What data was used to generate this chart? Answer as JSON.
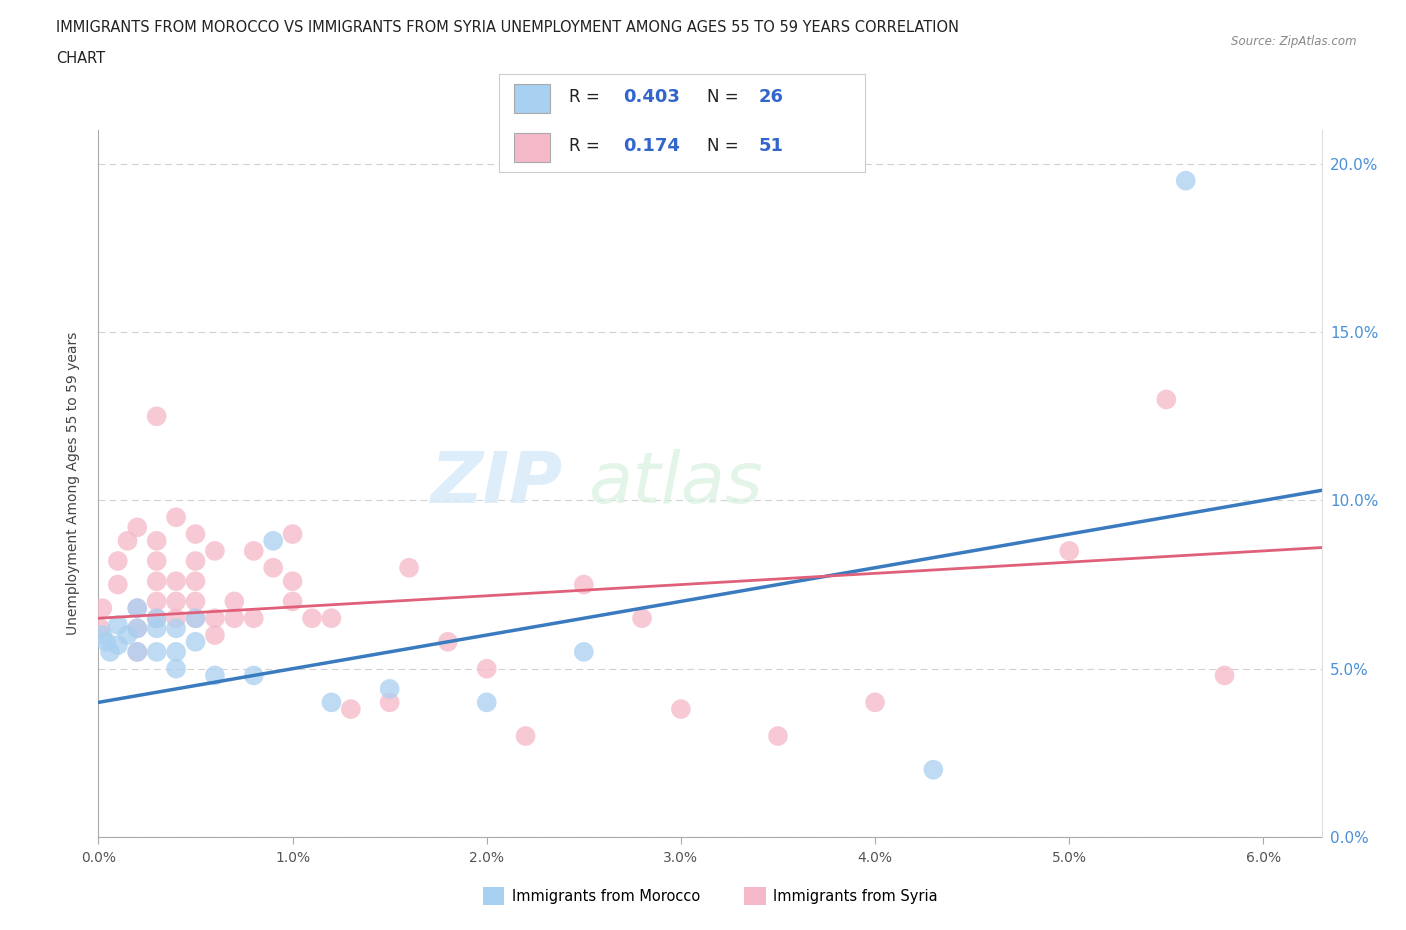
{
  "title_line1": "IMMIGRANTS FROM MOROCCO VS IMMIGRANTS FROM SYRIA UNEMPLOYMENT AMONG AGES 55 TO 59 YEARS CORRELATION",
  "title_line2": "CHART",
  "source_text": "Source: ZipAtlas.com",
  "ylabel": "Unemployment Among Ages 55 to 59 years",
  "xlim": [
    0.0,
    0.063
  ],
  "ylim": [
    0.0,
    0.21
  ],
  "morocco_color": "#a8d0f0",
  "syria_color": "#f5b8c8",
  "morocco_line_color": "#3a7bbf",
  "syria_line_color": "#e0607a",
  "right_tick_color": "#4a90d9",
  "morocco_R": 0.403,
  "morocco_N": 26,
  "syria_R": 0.174,
  "syria_N": 51,
  "legend_label1": "Immigrants from Morocco",
  "legend_label2": "Immigrants from Syria",
  "morocco_scatter_x": [
    0.0002,
    0.0004,
    0.0006,
    0.001,
    0.001,
    0.0015,
    0.002,
    0.002,
    0.002,
    0.003,
    0.003,
    0.003,
    0.004,
    0.004,
    0.004,
    0.005,
    0.005,
    0.006,
    0.008,
    0.009,
    0.012,
    0.015,
    0.02,
    0.025,
    0.043,
    0.056
  ],
  "morocco_scatter_y": [
    0.06,
    0.058,
    0.055,
    0.057,
    0.063,
    0.06,
    0.055,
    0.062,
    0.068,
    0.055,
    0.062,
    0.065,
    0.05,
    0.055,
    0.062,
    0.065,
    0.058,
    0.048,
    0.048,
    0.088,
    0.04,
    0.044,
    0.04,
    0.055,
    0.02,
    0.195
  ],
  "syria_scatter_x": [
    0.0001,
    0.0002,
    0.001,
    0.001,
    0.0015,
    0.002,
    0.002,
    0.002,
    0.002,
    0.003,
    0.003,
    0.003,
    0.003,
    0.003,
    0.003,
    0.004,
    0.004,
    0.004,
    0.004,
    0.005,
    0.005,
    0.005,
    0.005,
    0.005,
    0.006,
    0.006,
    0.006,
    0.007,
    0.007,
    0.008,
    0.008,
    0.009,
    0.01,
    0.01,
    0.01,
    0.011,
    0.012,
    0.013,
    0.015,
    0.016,
    0.018,
    0.02,
    0.022,
    0.025,
    0.028,
    0.03,
    0.035,
    0.04,
    0.05,
    0.055,
    0.058
  ],
  "syria_scatter_y": [
    0.062,
    0.068,
    0.075,
    0.082,
    0.088,
    0.055,
    0.062,
    0.068,
    0.092,
    0.065,
    0.07,
    0.076,
    0.082,
    0.088,
    0.125,
    0.065,
    0.07,
    0.076,
    0.095,
    0.065,
    0.07,
    0.076,
    0.082,
    0.09,
    0.06,
    0.065,
    0.085,
    0.065,
    0.07,
    0.065,
    0.085,
    0.08,
    0.07,
    0.076,
    0.09,
    0.065,
    0.065,
    0.038,
    0.04,
    0.08,
    0.058,
    0.05,
    0.03,
    0.075,
    0.065,
    0.038,
    0.03,
    0.04,
    0.085,
    0.13,
    0.048
  ],
  "x_ticks": [
    0.0,
    0.01,
    0.02,
    0.03,
    0.04,
    0.05,
    0.06
  ],
  "y_ticks": [
    0.0,
    0.05,
    0.1,
    0.15,
    0.2
  ]
}
